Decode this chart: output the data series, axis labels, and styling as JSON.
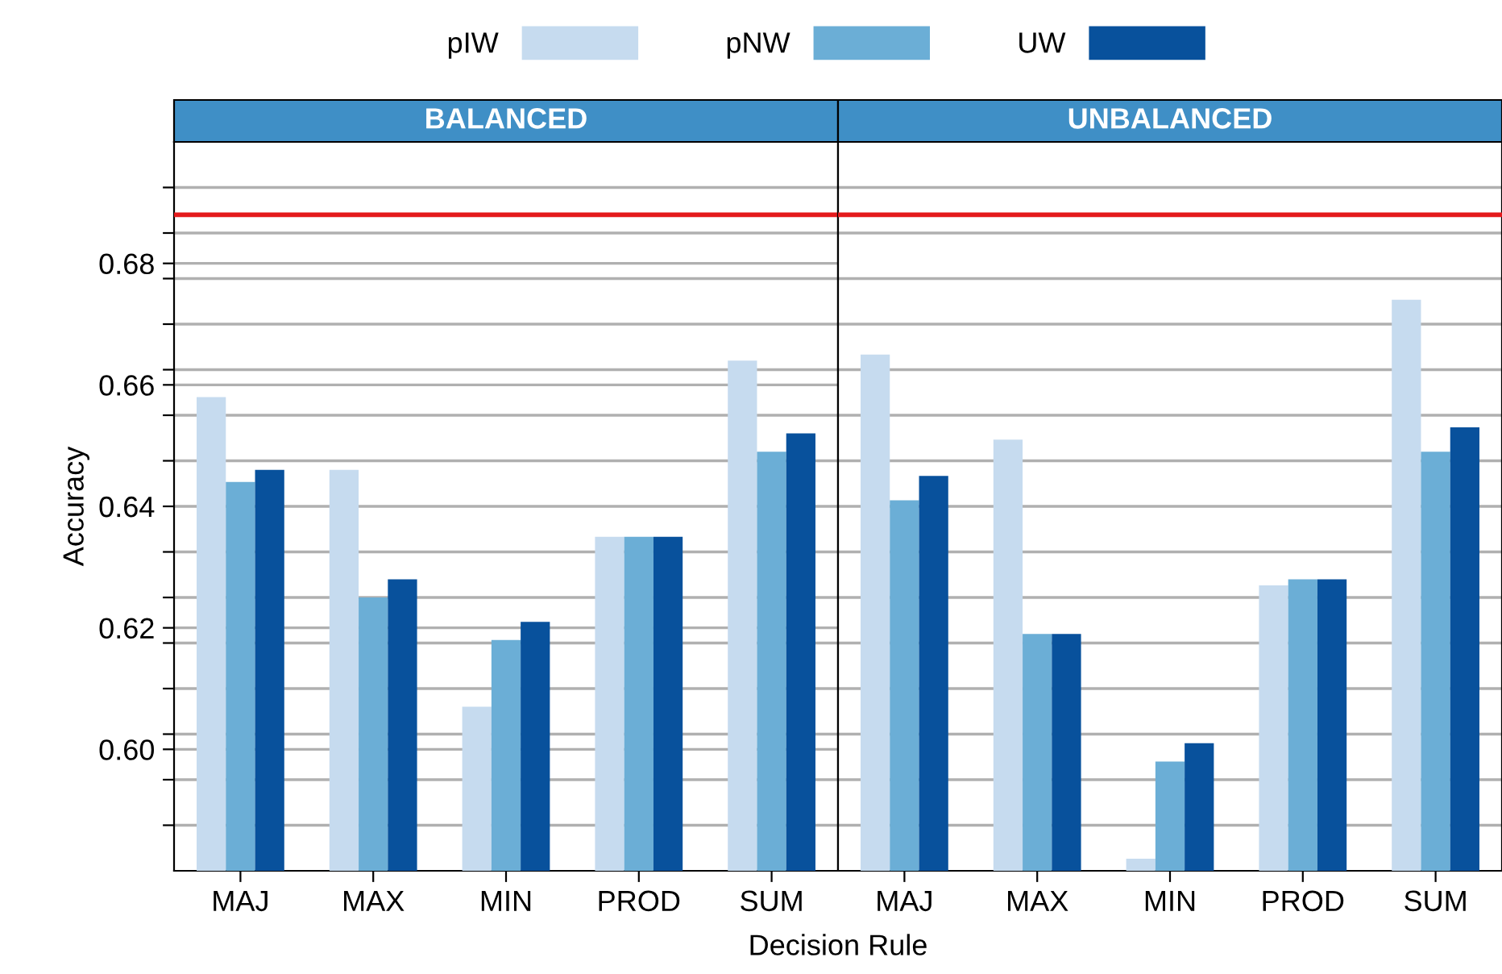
{
  "chart_data": [
    {
      "type": "bar",
      "title": "BALANCED",
      "xlabel": "Decision Rule",
      "ylabel": "Accuracy",
      "categories": [
        "MAJ",
        "MAX",
        "MIN",
        "PROD",
        "SUM"
      ],
      "series": [
        {
          "name": "pIW",
          "color": "#c6dbef",
          "values": [
            0.658,
            0.646,
            0.607,
            0.635,
            0.664
          ]
        },
        {
          "name": "pNW",
          "color": "#6baed6",
          "values": [
            0.644,
            0.625,
            0.618,
            0.635,
            0.649
          ]
        },
        {
          "name": "UW",
          "color": "#08519c",
          "values": [
            0.646,
            0.628,
            0.621,
            0.635,
            0.652
          ]
        }
      ],
      "ylim": [
        0.58,
        0.7
      ],
      "yticks": [
        {
          "value": 0.5875,
          "label": null
        },
        {
          "value": 0.595,
          "label": null
        },
        {
          "value": 0.6,
          "label": "0.60"
        },
        {
          "value": 0.6025,
          "label": null
        },
        {
          "value": 0.61,
          "label": null
        },
        {
          "value": 0.6175,
          "label": null
        },
        {
          "value": 0.62,
          "label": "0.62"
        },
        {
          "value": 0.625,
          "label": null
        },
        {
          "value": 0.6325,
          "label": null
        },
        {
          "value": 0.64,
          "label": "0.64"
        },
        {
          "value": 0.6475,
          "label": null
        },
        {
          "value": 0.655,
          "label": null
        },
        {
          "value": 0.66,
          "label": "0.66"
        },
        {
          "value": 0.6625,
          "label": null
        },
        {
          "value": 0.67,
          "label": null
        },
        {
          "value": 0.6775,
          "label": null
        },
        {
          "value": 0.68,
          "label": "0.68"
        },
        {
          "value": 0.685,
          "label": null
        },
        {
          "value": 0.6925,
          "label": null
        }
      ],
      "ref_lines": [
        {
          "axis": "y",
          "value": 0.688,
          "color": "#e41a1c"
        }
      ],
      "grid": "y",
      "legend": "top"
    },
    {
      "type": "bar",
      "title": "UNBALANCED",
      "categories": [
        "MAJ",
        "MAX",
        "MIN",
        "PROD",
        "SUM"
      ],
      "series": [
        {
          "color": "#c6dbef",
          "values": [
            0.665,
            0.651,
            0.582,
            0.627,
            0.674
          ]
        },
        {
          "color": "#6baed6",
          "values": [
            0.641,
            0.619,
            0.598,
            0.628,
            0.649
          ]
        },
        {
          "color": "#08519c",
          "values": [
            0.645,
            0.619,
            0.601,
            0.628,
            0.653
          ]
        }
      ],
      "ylim": [
        0.58,
        0.7
      ],
      "yticks": [
        {
          "value": 0.5875,
          "label": null
        },
        {
          "value": 0.595,
          "label": null
        },
        {
          "value": 0.6025,
          "label": null
        },
        {
          "value": 0.61,
          "label": null
        },
        {
          "value": 0.6175,
          "label": null
        },
        {
          "value": 0.625,
          "label": null
        },
        {
          "value": 0.6325,
          "label": null
        },
        {
          "value": 0.64,
          "label": null
        },
        {
          "value": 0.6475,
          "label": null
        },
        {
          "value": 0.655,
          "label": null
        },
        {
          "value": 0.6625,
          "label": null
        },
        {
          "value": 0.67,
          "label": null
        },
        {
          "value": 0.6775,
          "label": null
        },
        {
          "value": 0.685,
          "label": null
        },
        {
          "value": 0.6925,
          "label": null
        }
      ],
      "ref_lines": [
        {
          "axis": "y",
          "value": 0.688,
          "color": "#e41a1c"
        }
      ],
      "grid": "y",
      "tick_labels": "x"
    }
  ]
}
